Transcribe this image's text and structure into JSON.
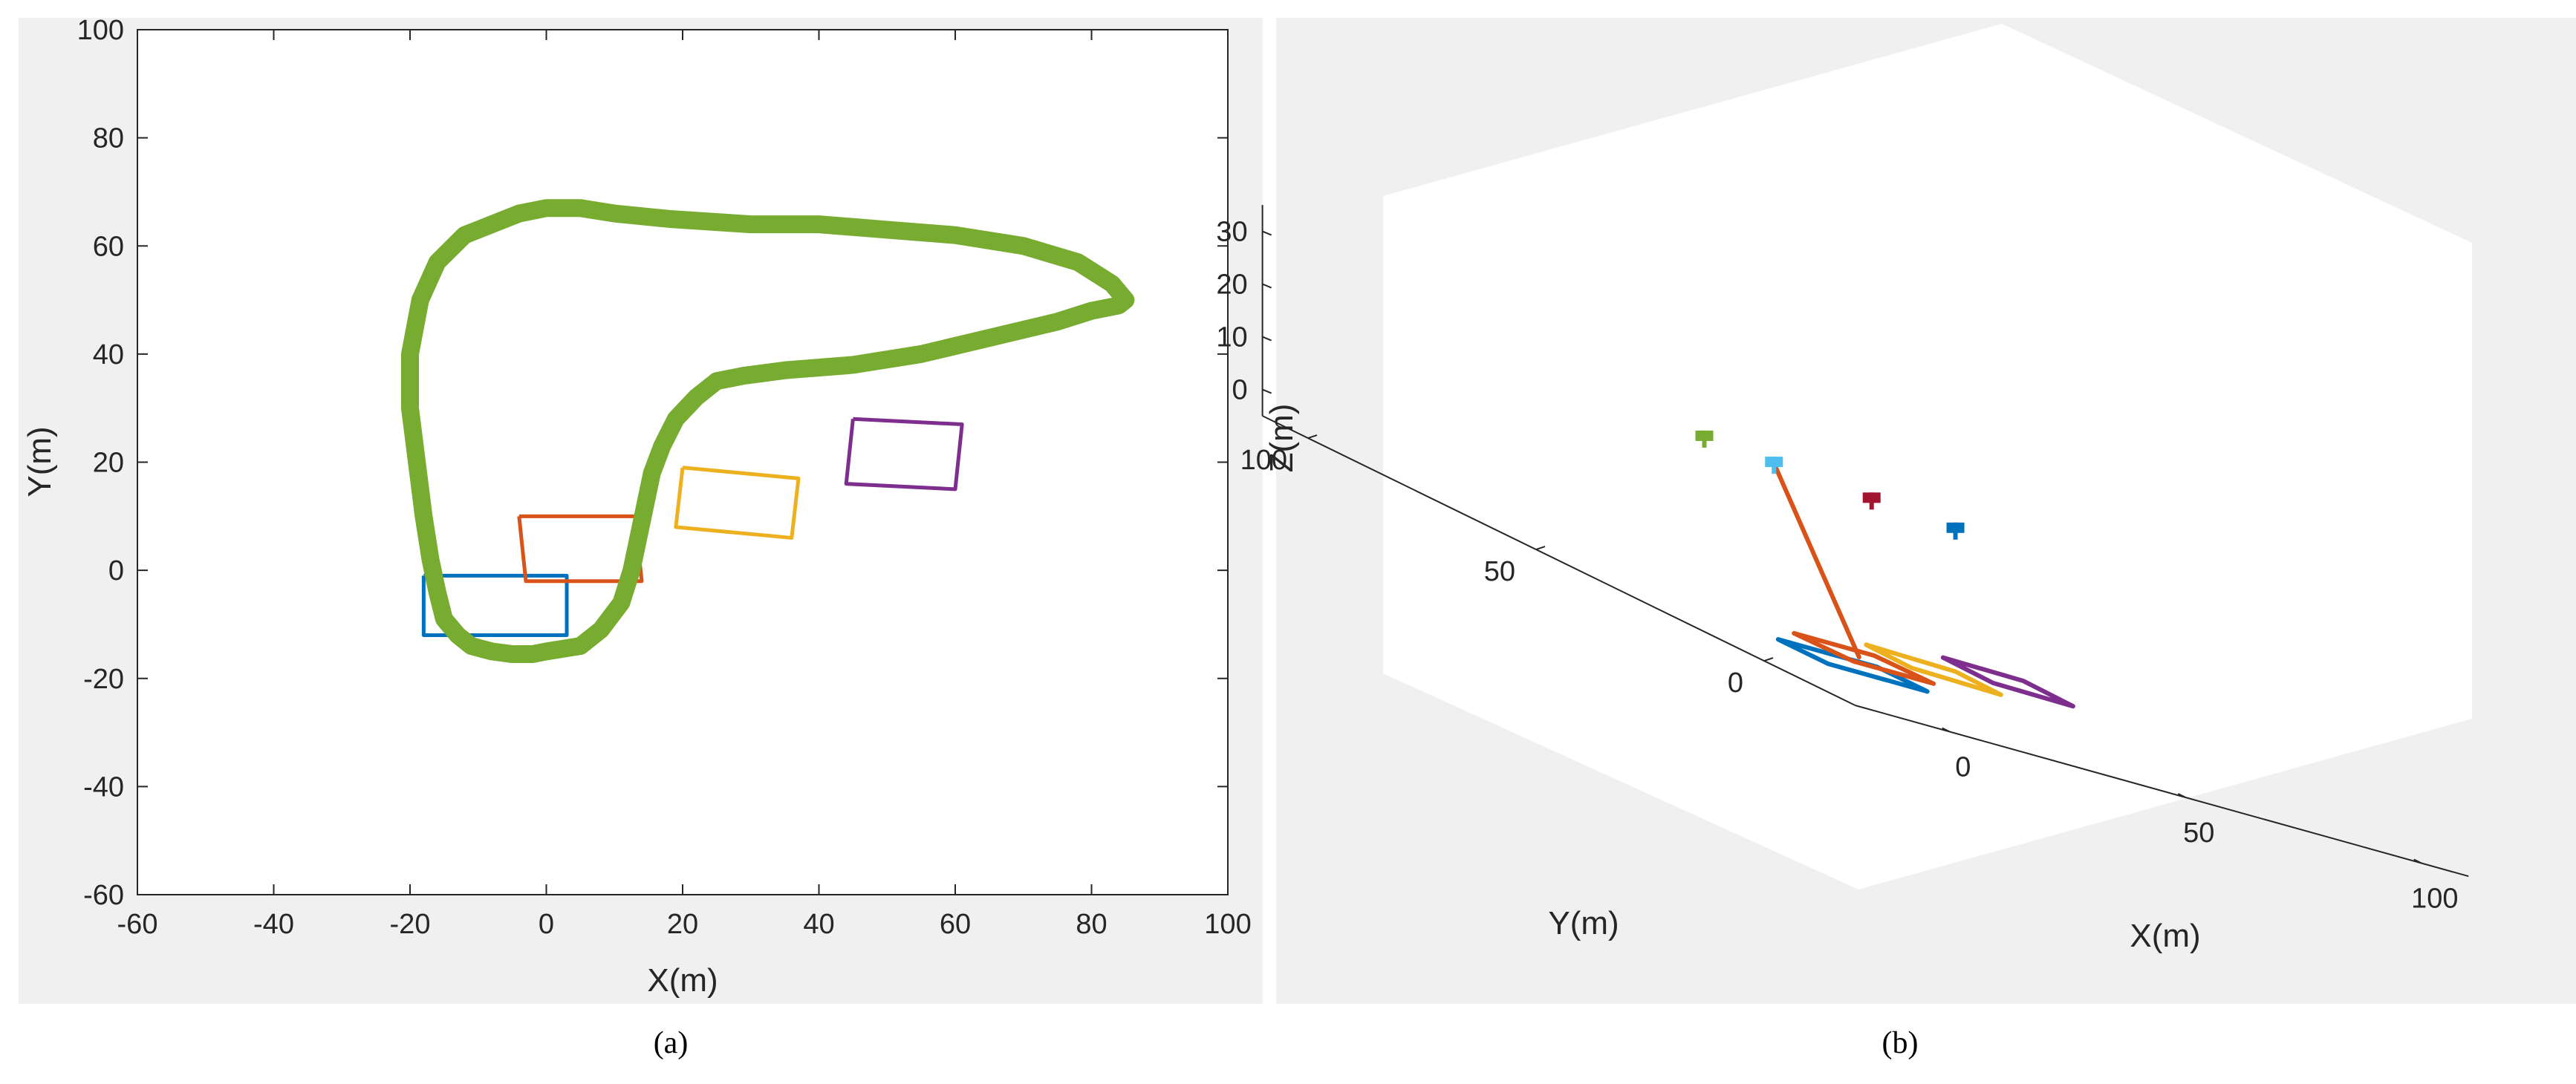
{
  "captions": {
    "left": "(a)",
    "right": "(b)"
  },
  "colors": {
    "figure_bg": "#f0f0f0",
    "axes_bg": "#ffffff",
    "axis_line": "#262626",
    "blue": "#0072bd",
    "orange": "#d95319",
    "yellow": "#edb120",
    "purple": "#7e2f8e",
    "green": "#77ac30",
    "cyan": "#4dbeee",
    "darkred": "#a2142f"
  },
  "chart_data": [
    {
      "type": "line",
      "id": "a",
      "xlabel": "X(m)",
      "ylabel": "Y(m)",
      "xlim": [
        -60,
        100
      ],
      "ylim": [
        -60,
        100
      ],
      "xticks": [
        -60,
        -40,
        -20,
        0,
        20,
        40,
        60,
        80,
        100
      ],
      "yticks": [
        -60,
        -40,
        -20,
        0,
        20,
        40,
        60,
        80,
        100
      ],
      "grid": false,
      "series": [
        {
          "kind": "trajectory",
          "color": "green",
          "x": [
            0,
            5,
            8,
            11,
            12.5,
            13.5,
            14.5,
            15.5,
            17,
            19,
            22,
            25,
            29,
            35,
            45,
            55,
            65,
            75,
            80,
            84,
            85,
            83,
            78,
            70,
            60,
            50,
            40,
            30,
            18,
            10,
            5,
            0,
            -4,
            -8,
            -12,
            -16,
            -18.5,
            -20,
            -20,
            -19,
            -18,
            -17,
            -16,
            -15,
            -13,
            -11,
            -8,
            -5,
            -2,
            0
          ],
          "y": [
            -15,
            -14,
            -11,
            -6,
            0,
            6,
            12,
            18,
            23,
            28,
            32,
            35,
            36,
            37,
            38,
            40,
            43,
            46,
            48,
            49,
            50,
            53,
            57,
            60,
            62,
            63,
            64,
            64,
            65,
            66,
            67,
            67,
            66,
            64,
            62,
            57,
            50,
            40,
            30,
            20,
            10,
            2,
            -4,
            -9,
            -12,
            -14,
            -15,
            -15.5,
            -15.5,
            -15
          ]
        },
        {
          "kind": "rectangle",
          "color": "blue",
          "x": [
            -18,
            3,
            3,
            -18,
            -18
          ],
          "y": [
            -1,
            -1,
            -12,
            -12,
            -1
          ]
        },
        {
          "kind": "rectangle",
          "color": "orange",
          "x": [
            -4,
            13,
            14,
            -3,
            -4
          ],
          "y": [
            10,
            10,
            -2,
            -2,
            10
          ]
        },
        {
          "kind": "rectangle",
          "color": "yellow",
          "x": [
            20,
            37,
            36,
            19,
            20
          ],
          "y": [
            19,
            17,
            6,
            8,
            19
          ]
        },
        {
          "kind": "rectangle",
          "color": "purple",
          "x": [
            45,
            61,
            60,
            44,
            45
          ],
          "y": [
            28,
            27,
            15,
            16,
            28
          ]
        }
      ]
    },
    {
      "type": "line3d",
      "id": "b",
      "xlabel": "X(m)",
      "ylabel": "Y(m)",
      "zlabel": "Z(m)",
      "xticks": [
        0,
        50,
        100
      ],
      "yticks": [
        0,
        50,
        100
      ],
      "zticks": [
        0,
        10,
        20,
        30
      ],
      "xlim": [
        -20,
        110
      ],
      "ylim": [
        -20,
        110
      ],
      "zlim": [
        -5,
        35
      ],
      "grid": false,
      "view": "isometric (az -37.5, el 30)",
      "series": [
        {
          "kind": "rectangle",
          "color": "blue",
          "x": [
            -18,
            3,
            3,
            -18,
            -18
          ],
          "y": [
            -1,
            -1,
            -12,
            -12,
            -1
          ],
          "z": [
            0,
            0,
            0,
            0,
            0
          ]
        },
        {
          "kind": "rectangle",
          "color": "orange",
          "x": [
            -4,
            13,
            14,
            -3,
            -4
          ],
          "y": [
            10,
            10,
            -2,
            -2,
            10
          ],
          "z": [
            0,
            0,
            0,
            0,
            0
          ]
        },
        {
          "kind": "rectangle",
          "color": "yellow",
          "x": [
            20,
            37,
            36,
            19,
            20
          ],
          "y": [
            19,
            17,
            6,
            8,
            19
          ],
          "z": [
            0,
            0,
            0,
            0,
            0
          ]
        },
        {
          "kind": "rectangle",
          "color": "purple",
          "x": [
            45,
            61,
            60,
            44,
            45
          ],
          "y": [
            28,
            27,
            15,
            16,
            28
          ],
          "z": [
            0,
            0,
            0,
            0,
            0
          ]
        },
        {
          "kind": "line",
          "color": "orange",
          "x": [
            4,
            14
          ],
          "y": [
            4,
            33
          ],
          "z": [
            0,
            27
          ]
        },
        {
          "kind": "marker",
          "color": "green",
          "x": 6,
          "y": 40,
          "z": 27
        },
        {
          "kind": "marker",
          "color": "cyan",
          "x": 14,
          "y": 33,
          "z": 27
        },
        {
          "kind": "marker",
          "color": "darkred",
          "x": 26,
          "y": 24,
          "z": 27
        },
        {
          "kind": "marker",
          "color": "blue",
          "x": 37,
          "y": 17,
          "z": 27
        }
      ]
    }
  ]
}
